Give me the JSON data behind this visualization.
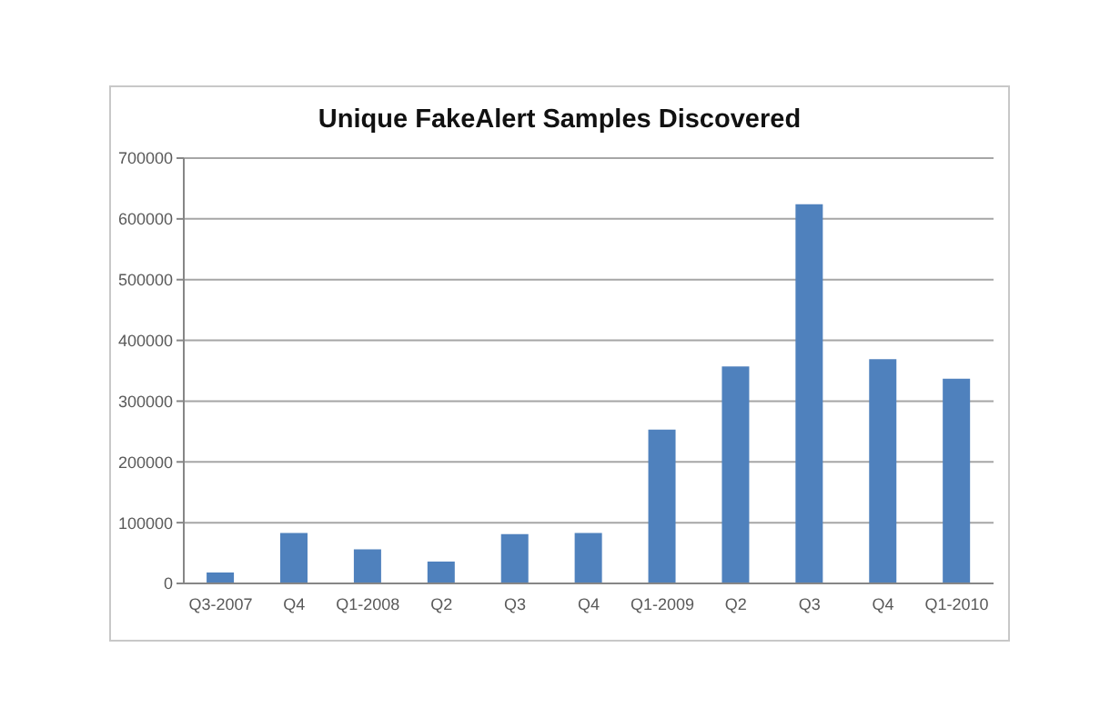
{
  "chart_data": {
    "type": "bar",
    "title": "Unique FakeAlert Samples Discovered",
    "categories": [
      "Q3-2007",
      "Q4",
      "Q1-2008",
      "Q2",
      "Q3",
      "Q4",
      "Q1-2009",
      "Q2",
      "Q3",
      "Q4",
      "Q1-2010"
    ],
    "values": [
      18000,
      83000,
      56000,
      36000,
      81000,
      83000,
      253000,
      357000,
      624000,
      369000,
      337000
    ],
    "color": "#4f81bd",
    "ylim": [
      0,
      700000
    ],
    "yticks": [
      0,
      100000,
      200000,
      300000,
      400000,
      500000,
      600000,
      700000
    ],
    "grid": "y"
  }
}
